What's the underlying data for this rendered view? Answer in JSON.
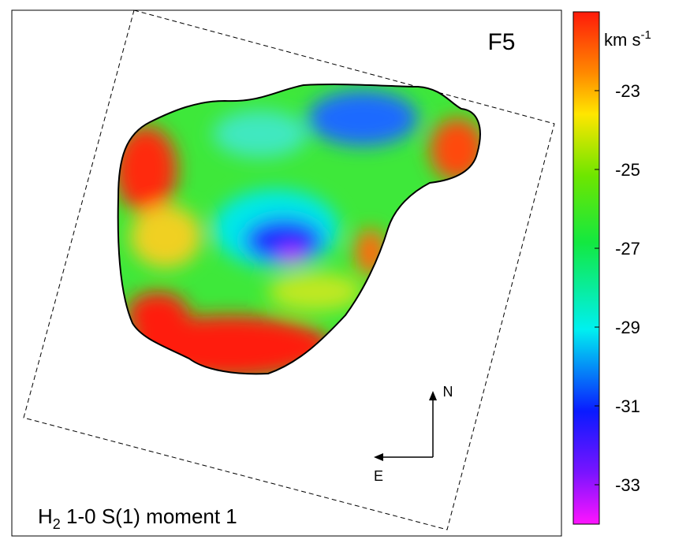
{
  "panel": {
    "label": "F5",
    "caption": {
      "main": "H",
      "subscript": "2",
      "rest": " 1-0 S(1) moment 1"
    }
  },
  "colorbar": {
    "unit": {
      "main": "km s",
      "superscript": "-1"
    },
    "lim": [
      -34,
      -21
    ],
    "ticks": [
      -23,
      -25,
      -27,
      -29,
      -31,
      -33
    ]
  },
  "compass": {
    "north": "N",
    "east": "E"
  }
}
